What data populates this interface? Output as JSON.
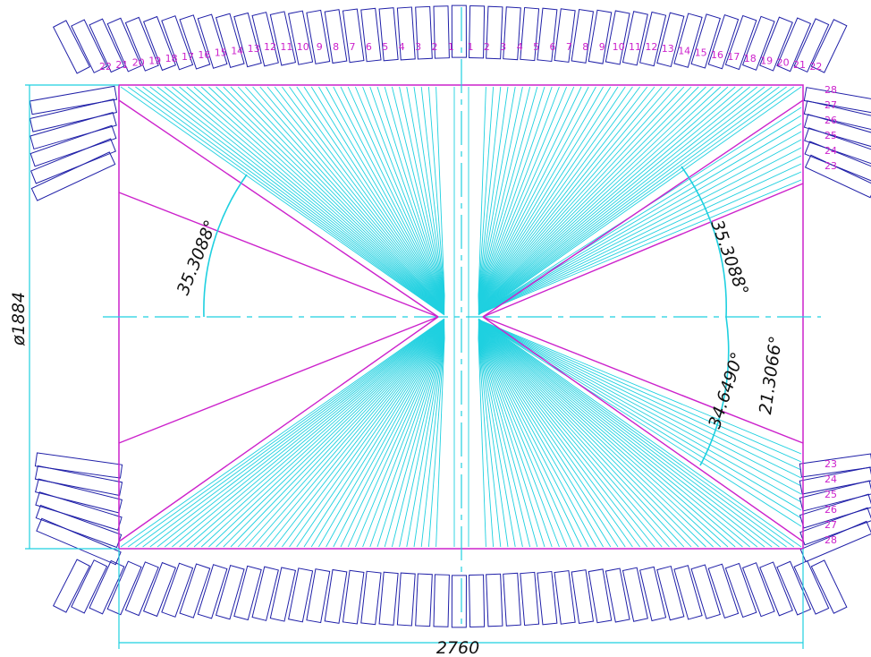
{
  "colors": {
    "cyan": "#1fd0e0",
    "magenta": "#cc22cc",
    "navy": "#2020a8",
    "dim_text": "#111111"
  },
  "dimensions": {
    "width": "2760",
    "height": "ø1884"
  },
  "angles": {
    "upper_left": "35.3088°",
    "upper_right": "35.3088°",
    "lower_right_inner": "34.6490°",
    "lower_right_outer": "21.3066°"
  },
  "top_labels": {
    "left": [
      "22",
      "21",
      "20",
      "19",
      "18",
      "17",
      "16",
      "15",
      "14",
      "13",
      "12",
      "11",
      "10",
      "9",
      "8",
      "7",
      "6",
      "5",
      "4",
      "3",
      "2",
      "1"
    ],
    "right": [
      "1",
      "2",
      "3",
      "4",
      "5",
      "6",
      "7",
      "8",
      "9",
      "10",
      "11",
      "12",
      "13",
      "14",
      "15",
      "16",
      "17",
      "18",
      "19",
      "20",
      "21",
      "22"
    ]
  },
  "side_labels_upper": [
    "28",
    "27",
    "26",
    "25",
    "24",
    "23"
  ],
  "side_labels_lower": [
    "23",
    "24",
    "25",
    "26",
    "27",
    "28"
  ]
}
